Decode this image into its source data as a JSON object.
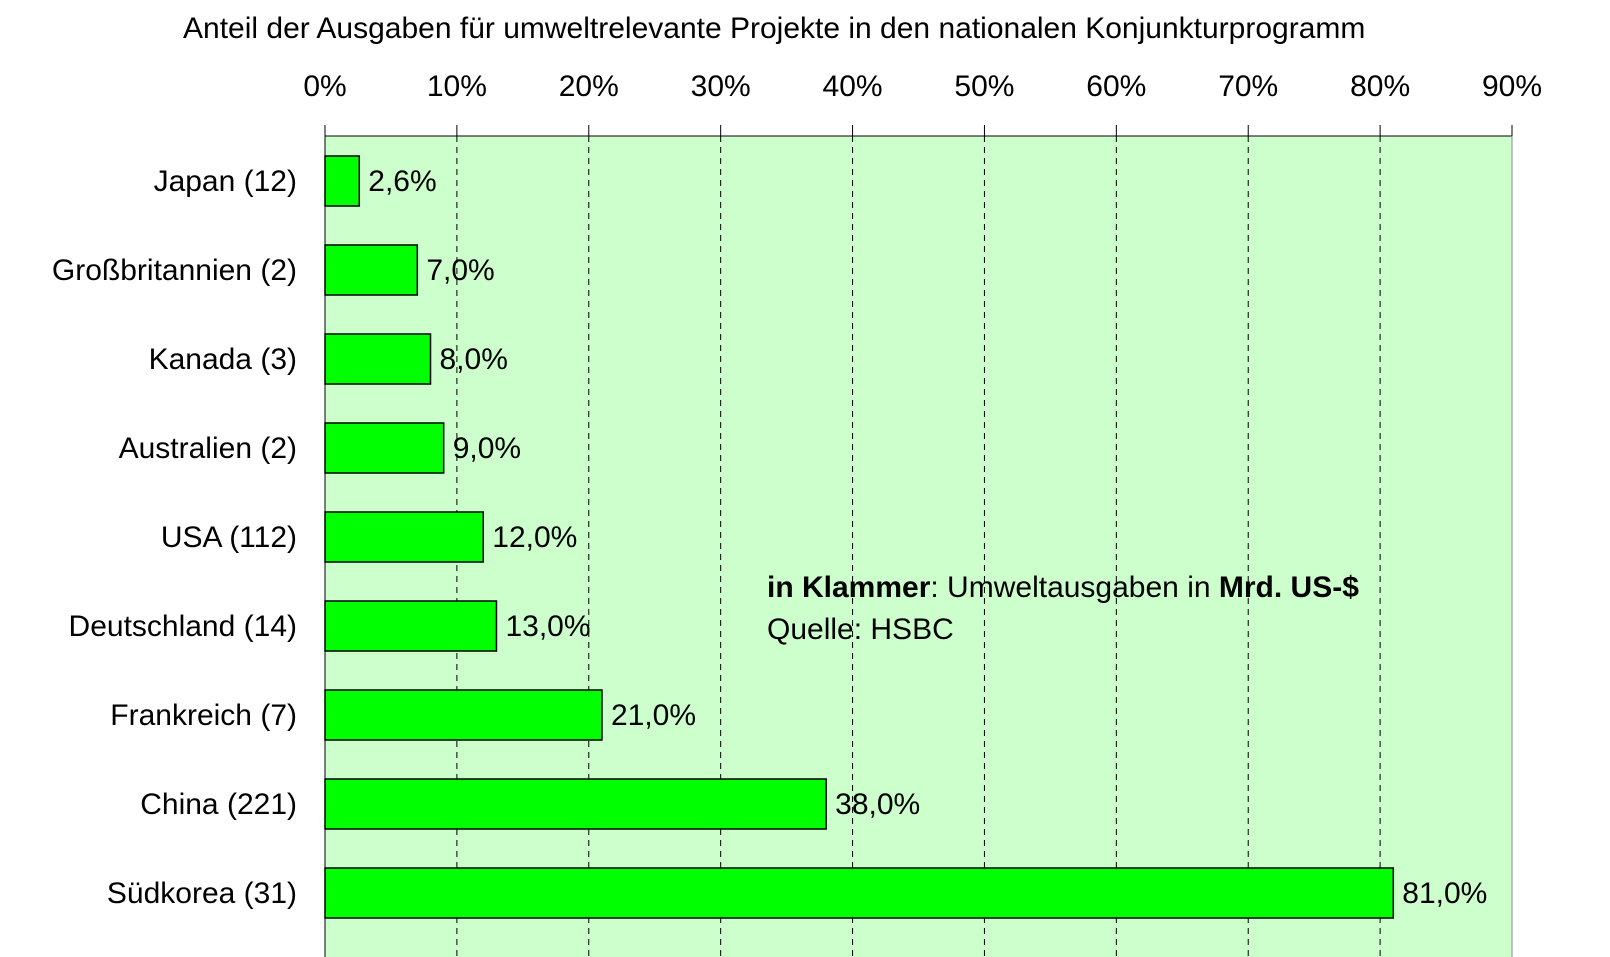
{
  "chart_data": {
    "type": "bar",
    "orientation": "horizontal",
    "title": "Anteil der Ausgaben für umweltrelevante Projekte in den nationalen Konjunkturprogramm",
    "categories": [
      "Japan (12)",
      "Großbritannien (2)",
      "Kanada (3)",
      "Australien (2)",
      "USA (112)",
      "Deutschland (14)",
      "Frankreich (7)",
      "China (221)",
      "Südkorea (31)"
    ],
    "values": [
      2.6,
      7,
      8,
      9,
      12,
      13,
      21,
      38,
      81
    ],
    "value_labels": [
      "2,6%",
      "7,0%",
      "8,0%",
      "9,0%",
      "12,0%",
      "13,0%",
      "21,0%",
      "38,0%",
      "81,0%"
    ],
    "color": "#00ff00",
    "background": "#ccffcc",
    "xlim": [
      0,
      90
    ],
    "xticks": [
      {
        "value": 0,
        "label": "0%"
      },
      {
        "value": 10,
        "label": "10%"
      },
      {
        "value": 20,
        "label": "20%"
      },
      {
        "value": 30,
        "label": "30%"
      },
      {
        "value": 40,
        "label": "40%"
      },
      {
        "value": 50,
        "label": "50%"
      },
      {
        "value": 60,
        "label": "60%"
      },
      {
        "value": 70,
        "label": "70%"
      },
      {
        "value": 80,
        "label": "80%"
      },
      {
        "value": 90,
        "label": "90%"
      }
    ],
    "grid": true,
    "annotation": {
      "line1": [
        "in Klammer",
        ": Umweltausgaben in ",
        "Mrd. US-$"
      ],
      "line2": "Quelle: HSBC"
    }
  }
}
